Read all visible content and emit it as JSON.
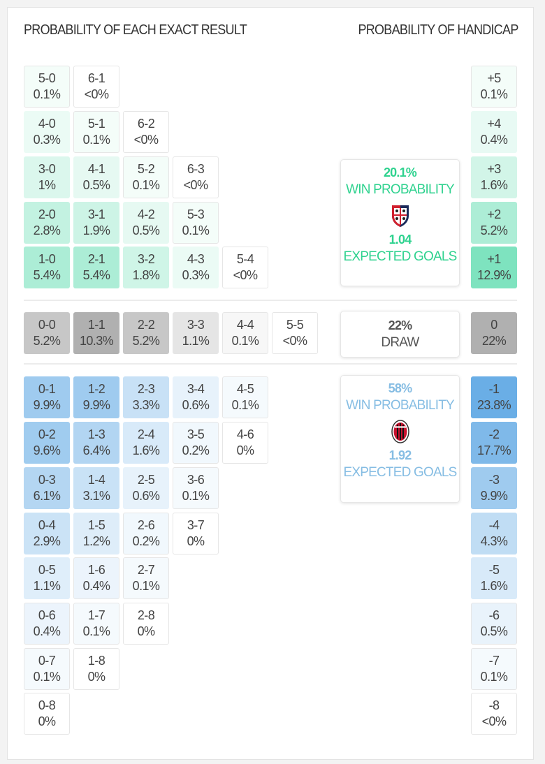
{
  "headers": {
    "exact": "PROBABILITY OF EACH EXACT RESULT",
    "handicap": "PROBABILITY OF HANDICAP"
  },
  "colors": {
    "home": "#7ee3bf",
    "draw": "#b0b0b0",
    "away": "#6aaee6",
    "home_text": "#2fd28f",
    "away_text": "#86bde3"
  },
  "exact_results": {
    "home_rows": [
      [
        [
          "5-0",
          "0.1%"
        ],
        [
          "6-1",
          "<0%"
        ]
      ],
      [
        [
          "4-0",
          "0.3%"
        ],
        [
          "5-1",
          "0.1%"
        ],
        [
          "6-2",
          "<0%"
        ]
      ],
      [
        [
          "3-0",
          "1%"
        ],
        [
          "4-1",
          "0.5%"
        ],
        [
          "5-2",
          "0.1%"
        ],
        [
          "6-3",
          "<0%"
        ]
      ],
      [
        [
          "2-0",
          "2.8%"
        ],
        [
          "3-1",
          "1.9%"
        ],
        [
          "4-2",
          "0.5%"
        ],
        [
          "5-3",
          "0.1%"
        ]
      ],
      [
        [
          "1-0",
          "5.4%"
        ],
        [
          "2-1",
          "5.4%"
        ],
        [
          "3-2",
          "1.8%"
        ],
        [
          "4-3",
          "0.3%"
        ],
        [
          "5-4",
          "<0%"
        ]
      ]
    ],
    "draw_rows": [
      [
        [
          "0-0",
          "5.2%"
        ],
        [
          "1-1",
          "10.3%"
        ],
        [
          "2-2",
          "5.2%"
        ],
        [
          "3-3",
          "1.1%"
        ],
        [
          "4-4",
          "0.1%"
        ],
        [
          "5-5",
          "<0%"
        ]
      ]
    ],
    "away_rows": [
      [
        [
          "0-1",
          "9.9%"
        ],
        [
          "1-2",
          "9.9%"
        ],
        [
          "2-3",
          "3.3%"
        ],
        [
          "3-4",
          "0.6%"
        ],
        [
          "4-5",
          "0.1%"
        ]
      ],
      [
        [
          "0-2",
          "9.6%"
        ],
        [
          "1-3",
          "6.4%"
        ],
        [
          "2-4",
          "1.6%"
        ],
        [
          "3-5",
          "0.2%"
        ],
        [
          "4-6",
          "0%"
        ]
      ],
      [
        [
          "0-3",
          "6.1%"
        ],
        [
          "1-4",
          "3.1%"
        ],
        [
          "2-5",
          "0.6%"
        ],
        [
          "3-6",
          "0.1%"
        ]
      ],
      [
        [
          "0-4",
          "2.9%"
        ],
        [
          "1-5",
          "1.2%"
        ],
        [
          "2-6",
          "0.2%"
        ],
        [
          "3-7",
          "0%"
        ]
      ],
      [
        [
          "0-5",
          "1.1%"
        ],
        [
          "1-6",
          "0.4%"
        ],
        [
          "2-7",
          "0.1%"
        ]
      ],
      [
        [
          "0-6",
          "0.4%"
        ],
        [
          "1-7",
          "0.1%"
        ],
        [
          "2-8",
          "0%"
        ]
      ],
      [
        [
          "0-7",
          "0.1%"
        ],
        [
          "1-8",
          "0%"
        ]
      ],
      [
        [
          "0-8",
          "0%"
        ]
      ]
    ]
  },
  "handicap": {
    "home": [
      [
        "+5",
        "0.1%"
      ],
      [
        "+4",
        "0.4%"
      ],
      [
        "+3",
        "1.6%"
      ],
      [
        "+2",
        "5.2%"
      ],
      [
        "+1",
        "12.9%"
      ]
    ],
    "draw": [
      [
        "0",
        "22%"
      ]
    ],
    "away": [
      [
        "-1",
        "23.8%"
      ],
      [
        "-2",
        "17.7%"
      ],
      [
        "-3",
        "9.9%"
      ],
      [
        "-4",
        "4.3%"
      ],
      [
        "-5",
        "1.6%"
      ],
      [
        "-6",
        "0.5%"
      ],
      [
        "-7",
        "0.1%"
      ],
      [
        "-8",
        "<0%"
      ]
    ]
  },
  "summary": {
    "home": {
      "win_pct": "20.1%",
      "win_label": "WIN PROBABILITY",
      "xg": "1.04",
      "xg_label": "EXPECTED GOALS",
      "crest_icon": "cagliari-crest"
    },
    "draw": {
      "pct": "22%",
      "label": "DRAW"
    },
    "away": {
      "win_pct": "58%",
      "win_label": "WIN PROBABILITY",
      "xg": "1.92",
      "xg_label": "EXPECTED GOALS",
      "crest_icon": "ac-milan-crest"
    }
  }
}
